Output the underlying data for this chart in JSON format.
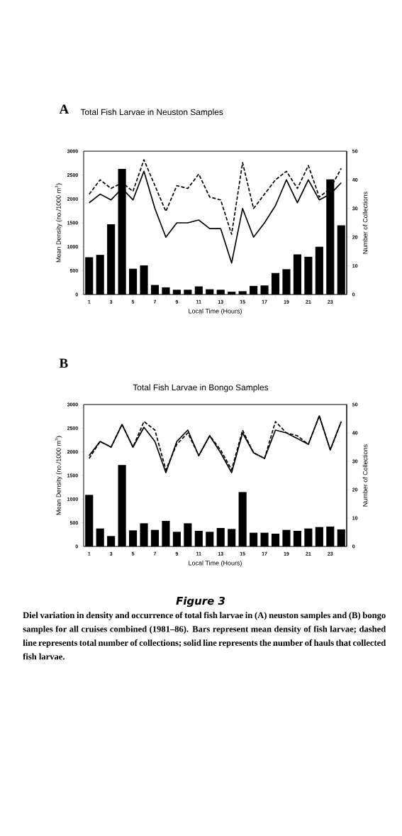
{
  "chart_data": [
    {
      "type": "bar",
      "title": "A",
      "subtitle": "Total Fish Larvae in Neuston Samples",
      "xlabel": "Local Time (Hours)",
      "ylabel": "Mean Density (no./1000 m$^{3}$)",
      "y2label": "Number of Collections",
      "x": [
        1,
        2,
        3,
        4,
        5,
        6,
        7,
        8,
        9,
        10,
        11,
        12,
        13,
        14,
        15,
        16,
        17,
        18,
        19,
        20,
        21,
        22,
        23,
        24
      ],
      "series": [
        {
          "color": "#000000",
          "values": [
            780,
            830,
            1470,
            2630,
            540,
            610,
            200,
            150,
            100,
            100,
            170,
            110,
            100,
            60,
            70,
            180,
            190,
            450,
            530,
            840,
            790,
            1000,
            2410,
            1450
          ]
        },
        {
          "type": "line",
          "axis": "y2",
          "line_style": "solid",
          "color": "#000000",
          "values": [
            32,
            35,
            33,
            37,
            33,
            43,
            30,
            20,
            25,
            25,
            26,
            23,
            23,
            11,
            30,
            20,
            25,
            31,
            40,
            32,
            40,
            33,
            35,
            39
          ]
        },
        {
          "type": "line",
          "axis": "y2",
          "line_style": "dashed",
          "color": "#000000",
          "values": [
            35,
            40,
            37,
            39,
            36,
            47,
            38,
            29,
            38,
            37,
            42,
            34,
            33,
            21,
            46,
            30,
            35,
            40,
            43,
            37,
            45,
            34,
            37,
            44
          ]
        }
      ],
      "xlim": [
        0.5,
        24.5
      ],
      "xticks": [
        1,
        {
          "value": 2,
          "label": null
        },
        3,
        {
          "value": 4,
          "label": null
        },
        5,
        {
          "value": 6,
          "label": null
        },
        7,
        {
          "value": 8,
          "label": null
        },
        9,
        {
          "value": 10,
          "label": null
        },
        11,
        {
          "value": 12,
          "label": null
        },
        13,
        {
          "value": 14,
          "label": null
        },
        15,
        {
          "value": 16,
          "label": null
        },
        17,
        {
          "value": 18,
          "label": null
        },
        19,
        {
          "value": 20,
          "label": null
        },
        21,
        {
          "value": 22,
          "label": null
        },
        23,
        {
          "value": 24,
          "label": null
        }
      ],
      "ylim": [
        0,
        3000
      ],
      "yticks": [
        0,
        500,
        1000,
        1500,
        2000,
        2500,
        3000
      ],
      "y2lim": [
        0,
        50
      ],
      "y2ticks": [
        0,
        10,
        20,
        30,
        40,
        50
      ]
    },
    {
      "type": "bar",
      "title": "B",
      "subtitle": "Total Fish Larvae in Bongo Samples",
      "xlabel": "Local Time (Hours)",
      "ylabel": "Mean Density (no./1000 m$^{3}$)",
      "y2label": "Number of Collections",
      "x": [
        1,
        2,
        3,
        4,
        5,
        6,
        7,
        8,
        9,
        10,
        11,
        12,
        13,
        14,
        15,
        16,
        17,
        18,
        19,
        20,
        21,
        22,
        23,
        24
      ],
      "series": [
        {
          "color": "#000000",
          "values": [
            1090,
            380,
            220,
            1720,
            340,
            490,
            350,
            540,
            310,
            490,
            330,
            310,
            390,
            370,
            1150,
            290,
            290,
            270,
            350,
            330,
            380,
            410,
            420,
            360
          ]
        },
        {
          "type": "line",
          "axis": "y2",
          "line_style": "solid",
          "color": "#000000",
          "values": [
            32,
            37,
            35,
            43,
            35,
            42,
            37,
            26,
            37,
            41,
            32,
            39,
            33,
            26,
            40,
            33,
            31,
            41,
            40,
            38,
            36,
            46,
            34,
            44
          ]
        },
        {
          "type": "line",
          "axis": "y2",
          "line_style": "dashed",
          "color": "#000000",
          "values": [
            31,
            37,
            35,
            43,
            35,
            44,
            41,
            27,
            36,
            40,
            32,
            39,
            34,
            27,
            41,
            33,
            31,
            44,
            40,
            39,
            36,
            46,
            34,
            44
          ]
        }
      ],
      "xlim": [
        0.5,
        24.5
      ],
      "xticks": [
        1,
        {
          "value": 2,
          "label": null
        },
        3,
        {
          "value": 4,
          "label": null
        },
        5,
        {
          "value": 6,
          "label": null
        },
        7,
        {
          "value": 8,
          "label": null
        },
        9,
        {
          "value": 10,
          "label": null
        },
        11,
        {
          "value": 12,
          "label": null
        },
        13,
        {
          "value": 14,
          "label": null
        },
        15,
        {
          "value": 16,
          "label": null
        },
        17,
        {
          "value": 18,
          "label": null
        },
        19,
        {
          "value": 20,
          "label": null
        },
        21,
        {
          "value": 22,
          "label": null
        },
        23,
        {
          "value": 24,
          "label": null
        }
      ],
      "ylim": [
        0,
        3000
      ],
      "yticks": [
        0,
        500,
        1000,
        1500,
        2000,
        2500,
        3000
      ],
      "y2lim": [
        0,
        50
      ],
      "y2ticks": [
        0,
        10,
        20,
        30,
        40,
        50
      ],
      "annotations": [
        "Figure 3",
        "Diel variation in density and occurrence of total fish larvae in (**A**) neuston samples and (**B**) bongo samples for all cruises combined (1981–86). Bars represent mean density of fish larvae; dashed line represents total number of collections; solid line represents the number of hauls that collected fish larvae."
      ]
    }
  ]
}
